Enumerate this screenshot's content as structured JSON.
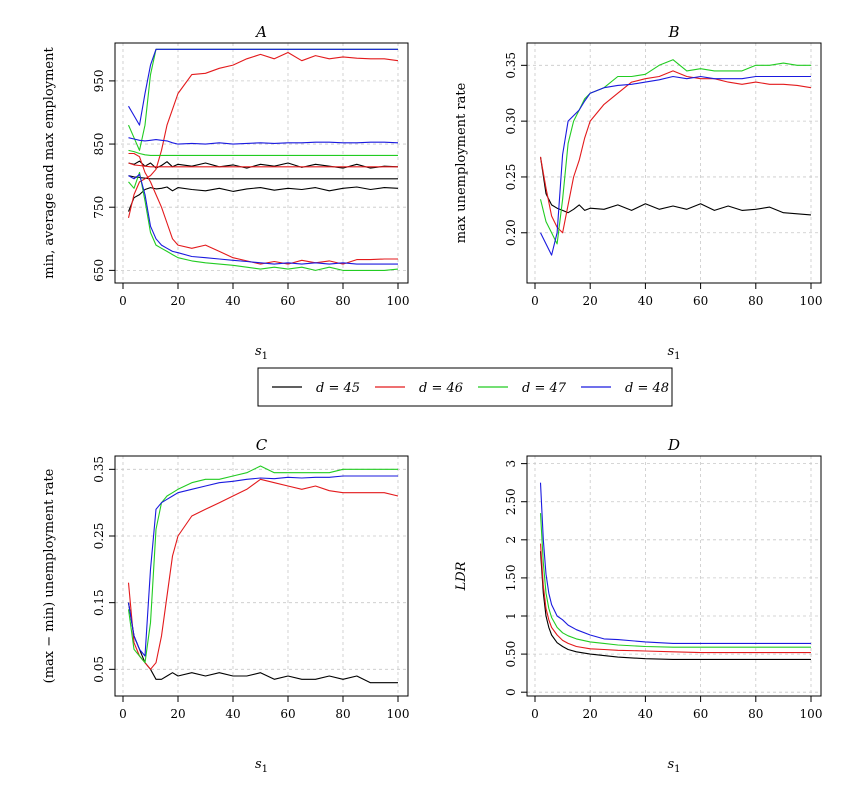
{
  "legend": {
    "items": [
      {
        "label": "d = 45",
        "color": "#000000"
      },
      {
        "label": "d = 46",
        "color": "#e31a1c"
      },
      {
        "label": "d = 47",
        "color": "#22cc22"
      },
      {
        "label": "d = 48",
        "color": "#1a1adf"
      }
    ]
  },
  "chart_data": [
    {
      "id": "A",
      "title": "A",
      "type": "line",
      "xlabel": "s1",
      "ylabel": "min, average and max employment",
      "xlim": [
        0,
        100
      ],
      "ylim": [
        630,
        1010
      ],
      "xticks": [
        0,
        20,
        40,
        60,
        80,
        100
      ],
      "yticks": [
        650,
        750,
        850,
        950
      ],
      "grid": true,
      "x": [
        2,
        4,
        6,
        8,
        10,
        12,
        14,
        16,
        18,
        20,
        25,
        30,
        35,
        40,
        45,
        50,
        55,
        60,
        65,
        70,
        75,
        80,
        85,
        90,
        95,
        100
      ],
      "series": [
        {
          "name": "d = 45",
          "values": [
            743,
            765,
            770,
            778,
            781,
            779,
            780,
            782,
            776,
            781,
            778,
            776,
            780,
            775,
            779,
            781,
            777,
            780,
            778,
            781,
            776,
            780,
            782,
            778,
            781,
            780
          ]
        },
        {
          "name": "d = 45",
          "values": [
            820,
            818,
            823,
            815,
            820,
            812,
            816,
            822,
            814,
            818,
            815,
            820,
            814,
            817,
            812,
            818,
            815,
            820,
            813,
            818,
            815,
            812,
            818,
            812,
            815,
            814
          ]
        },
        {
          "name": "d = 45",
          "values": [
            800,
            798,
            797,
            796,
            795,
            795,
            795,
            795,
            795,
            795,
            795,
            795,
            795,
            795,
            795,
            795,
            795,
            795,
            795,
            795,
            795,
            795,
            795,
            795,
            795,
            795
          ]
        },
        {
          "name": "d = 46",
          "values": [
            733,
            770,
            790,
            795,
            800,
            810,
            840,
            880,
            905,
            930,
            960,
            962,
            970,
            975,
            985,
            992,
            985,
            995,
            982,
            990,
            985,
            988,
            986,
            985,
            985,
            982
          ]
        },
        {
          "name": "d = 46",
          "values": [
            820,
            817,
            816,
            815,
            814,
            814,
            814,
            814,
            814,
            814,
            814,
            814,
            814,
            814,
            814,
            814,
            814,
            814,
            814,
            814,
            814,
            814,
            814,
            814,
            814,
            814
          ]
        },
        {
          "name": "d = 46",
          "values": [
            835,
            835,
            830,
            805,
            790,
            770,
            750,
            725,
            700,
            690,
            685,
            690,
            680,
            670,
            665,
            660,
            664,
            660,
            666,
            662,
            665,
            660,
            667,
            667,
            668,
            668
          ]
        },
        {
          "name": "d = 47",
          "values": [
            880,
            860,
            840,
            880,
            960,
            1000,
            1000,
            1000,
            1000,
            1000,
            1000,
            1000,
            1000,
            1000,
            1000,
            1000,
            1000,
            1000,
            1000,
            1000,
            1000,
            1000,
            1000,
            1000,
            1000,
            1000
          ]
        },
        {
          "name": "d = 47",
          "values": [
            840,
            838,
            835,
            833,
            832,
            832,
            832,
            832,
            832,
            832,
            832,
            832,
            832,
            832,
            832,
            832,
            832,
            832,
            832,
            832,
            832,
            832,
            832,
            832,
            832,
            832
          ]
        },
        {
          "name": "d = 47",
          "values": [
            790,
            780,
            805,
            760,
            710,
            690,
            685,
            680,
            675,
            670,
            665,
            662,
            660,
            658,
            655,
            652,
            655,
            652,
            655,
            650,
            655,
            650,
            650,
            650,
            650,
            652
          ]
        },
        {
          "name": "d = 48",
          "values": [
            910,
            895,
            880,
            930,
            975,
            1000,
            1000,
            1000,
            1000,
            1000,
            1000,
            1000,
            1000,
            1000,
            1000,
            1000,
            1000,
            1000,
            1000,
            1000,
            1000,
            1000,
            1000,
            1000,
            1000,
            1000
          ]
        },
        {
          "name": "d = 48",
          "values": [
            860,
            858,
            856,
            855,
            856,
            857,
            856,
            855,
            852,
            850,
            851,
            850,
            852,
            850,
            851,
            852,
            851,
            852,
            852,
            853,
            853,
            852,
            852,
            853,
            853,
            852
          ]
        },
        {
          "name": "d = 48",
          "values": [
            800,
            795,
            802,
            770,
            720,
            700,
            690,
            685,
            680,
            678,
            672,
            670,
            668,
            666,
            664,
            662,
            660,
            662,
            660,
            662,
            660,
            662,
            660,
            660,
            660,
            660
          ]
        }
      ]
    },
    {
      "id": "B",
      "title": "B",
      "type": "line",
      "xlabel": "s1",
      "ylabel": "max unemployment rate",
      "xlim": [
        0,
        100
      ],
      "ylim": [
        0.155,
        0.37
      ],
      "xticks": [
        0,
        20,
        40,
        60,
        80,
        100
      ],
      "yticks": [
        0.2,
        0.25,
        0.3,
        0.35
      ],
      "grid": true,
      "x": [
        2,
        4,
        6,
        8,
        10,
        12,
        14,
        16,
        18,
        20,
        25,
        30,
        35,
        40,
        45,
        50,
        55,
        60,
        65,
        70,
        75,
        80,
        85,
        90,
        95,
        100
      ],
      "series": [
        {
          "name": "d = 45",
          "values": [
            0.268,
            0.235,
            0.225,
            0.222,
            0.22,
            0.218,
            0.221,
            0.225,
            0.22,
            0.222,
            0.221,
            0.225,
            0.22,
            0.226,
            0.221,
            0.224,
            0.221,
            0.226,
            0.22,
            0.224,
            0.22,
            0.221,
            0.223,
            0.218,
            0.217,
            0.216
          ]
        },
        {
          "name": "d = 46",
          "values": [
            0.268,
            0.24,
            0.215,
            0.205,
            0.2,
            0.225,
            0.25,
            0.265,
            0.285,
            0.3,
            0.315,
            0.325,
            0.335,
            0.338,
            0.34,
            0.345,
            0.34,
            0.338,
            0.338,
            0.335,
            0.333,
            0.335,
            0.333,
            0.333,
            0.332,
            0.33
          ]
        },
        {
          "name": "d = 47",
          "values": [
            0.23,
            0.21,
            0.2,
            0.19,
            0.23,
            0.28,
            0.3,
            0.31,
            0.32,
            0.325,
            0.33,
            0.34,
            0.34,
            0.342,
            0.35,
            0.355,
            0.345,
            0.347,
            0.345,
            0.345,
            0.345,
            0.35,
            0.35,
            0.352,
            0.35,
            0.35
          ]
        },
        {
          "name": "d = 48",
          "values": [
            0.2,
            0.19,
            0.18,
            0.2,
            0.27,
            0.3,
            0.305,
            0.31,
            0.318,
            0.325,
            0.33,
            0.332,
            0.333,
            0.335,
            0.337,
            0.34,
            0.338,
            0.34,
            0.338,
            0.338,
            0.338,
            0.34,
            0.34,
            0.34,
            0.34,
            0.34
          ]
        }
      ]
    },
    {
      "id": "C",
      "title": "C",
      "type": "line",
      "xlabel": "s1",
      "ylabel": "(max − min) unemployment rate",
      "xlim": [
        0,
        100
      ],
      "ylim": [
        0.01,
        0.37
      ],
      "xticks": [
        0,
        20,
        40,
        60,
        80,
        100
      ],
      "yticks": [
        0.05,
        0.15,
        0.25,
        0.35
      ],
      "grid": true,
      "x": [
        2,
        4,
        6,
        8,
        10,
        12,
        14,
        16,
        18,
        20,
        25,
        30,
        35,
        40,
        45,
        50,
        55,
        60,
        65,
        70,
        75,
        80,
        85,
        90,
        95,
        100
      ],
      "series": [
        {
          "name": "d = 45",
          "values": [
            0.15,
            0.1,
            0.08,
            0.06,
            0.05,
            0.035,
            0.035,
            0.04,
            0.045,
            0.04,
            0.045,
            0.04,
            0.045,
            0.04,
            0.04,
            0.045,
            0.035,
            0.04,
            0.035,
            0.035,
            0.04,
            0.035,
            0.04,
            0.03,
            0.03,
            0.03
          ]
        },
        {
          "name": "d = 46",
          "values": [
            0.18,
            0.09,
            0.07,
            0.06,
            0.05,
            0.06,
            0.1,
            0.16,
            0.22,
            0.25,
            0.28,
            0.29,
            0.3,
            0.31,
            0.32,
            0.335,
            0.33,
            0.325,
            0.32,
            0.325,
            0.318,
            0.315,
            0.315,
            0.315,
            0.315,
            0.31
          ]
        },
        {
          "name": "d = 47",
          "values": [
            0.14,
            0.08,
            0.07,
            0.06,
            0.12,
            0.26,
            0.3,
            0.31,
            0.315,
            0.32,
            0.33,
            0.335,
            0.335,
            0.34,
            0.345,
            0.355,
            0.345,
            0.345,
            0.345,
            0.345,
            0.345,
            0.35,
            0.35,
            0.35,
            0.35,
            0.35
          ]
        },
        {
          "name": "d = 48",
          "values": [
            0.15,
            0.1,
            0.08,
            0.07,
            0.2,
            0.29,
            0.3,
            0.305,
            0.31,
            0.315,
            0.32,
            0.325,
            0.33,
            0.332,
            0.335,
            0.337,
            0.336,
            0.338,
            0.337,
            0.338,
            0.338,
            0.34,
            0.34,
            0.34,
            0.34,
            0.34
          ]
        }
      ]
    },
    {
      "id": "D",
      "title": "D",
      "type": "line",
      "xlabel": "s1",
      "ylabel": "LDR",
      "xlim": [
        0,
        100
      ],
      "ylim": [
        -0.05,
        3.1
      ],
      "xticks": [
        0,
        20,
        40,
        60,
        80,
        100
      ],
      "yticks": [
        0.0,
        0.5,
        1.0,
        1.5,
        2.0,
        2.5,
        3.0
      ],
      "grid": true,
      "x": [
        2,
        3,
        4,
        5,
        6,
        8,
        10,
        12,
        15,
        20,
        25,
        30,
        40,
        50,
        60,
        70,
        80,
        90,
        100
      ],
      "series": [
        {
          "name": "d = 45",
          "values": [
            1.85,
            1.3,
            1.0,
            0.85,
            0.75,
            0.65,
            0.6,
            0.56,
            0.53,
            0.5,
            0.48,
            0.46,
            0.44,
            0.43,
            0.43,
            0.43,
            0.43,
            0.43,
            0.43
          ]
        },
        {
          "name": "d = 46",
          "values": [
            1.95,
            1.4,
            1.1,
            0.95,
            0.85,
            0.75,
            0.68,
            0.64,
            0.6,
            0.57,
            0.56,
            0.55,
            0.54,
            0.53,
            0.52,
            0.52,
            0.52,
            0.52,
            0.52
          ]
        },
        {
          "name": "d = 47",
          "values": [
            2.35,
            1.7,
            1.3,
            1.1,
            0.98,
            0.85,
            0.78,
            0.74,
            0.7,
            0.66,
            0.64,
            0.62,
            0.6,
            0.59,
            0.59,
            0.59,
            0.59,
            0.59,
            0.59
          ]
        },
        {
          "name": "d = 48",
          "values": [
            2.75,
            2.0,
            1.55,
            1.3,
            1.15,
            1.0,
            0.95,
            0.88,
            0.82,
            0.75,
            0.7,
            0.69,
            0.66,
            0.64,
            0.64,
            0.64,
            0.64,
            0.64,
            0.64
          ]
        }
      ]
    }
  ]
}
